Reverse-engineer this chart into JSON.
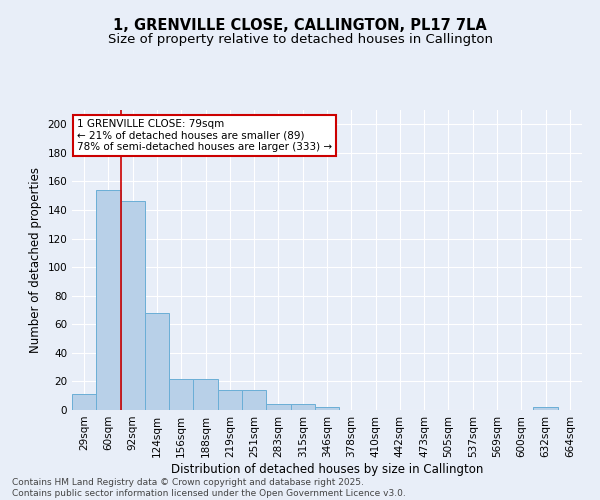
{
  "title": "1, GRENVILLE CLOSE, CALLINGTON, PL17 7LA",
  "subtitle": "Size of property relative to detached houses in Callington",
  "xlabel": "Distribution of detached houses by size in Callington",
  "ylabel": "Number of detached properties",
  "categories": [
    "29sqm",
    "60sqm",
    "92sqm",
    "124sqm",
    "156sqm",
    "188sqm",
    "219sqm",
    "251sqm",
    "283sqm",
    "315sqm",
    "346sqm",
    "378sqm",
    "410sqm",
    "442sqm",
    "473sqm",
    "505sqm",
    "537sqm",
    "569sqm",
    "600sqm",
    "632sqm",
    "664sqm"
  ],
  "values": [
    11,
    154,
    146,
    68,
    22,
    22,
    14,
    14,
    4,
    4,
    2,
    0,
    0,
    0,
    0,
    0,
    0,
    0,
    0,
    2,
    0
  ],
  "bar_color": "#b8d0e8",
  "bar_edge_color": "#6aaed6",
  "vline_x": 1.5,
  "vline_color": "#cc0000",
  "annotation_text": "1 GRENVILLE CLOSE: 79sqm\n← 21% of detached houses are smaller (89)\n78% of semi-detached houses are larger (333) →",
  "annotation_box_color": "#ffffff",
  "annotation_box_edge": "#cc0000",
  "background_color": "#e8eef8",
  "plot_bg_color": "#e8eef8",
  "grid_color": "#ffffff",
  "footer": "Contains HM Land Registry data © Crown copyright and database right 2025.\nContains public sector information licensed under the Open Government Licence v3.0.",
  "ylim": [
    0,
    210
  ],
  "yticks": [
    0,
    20,
    40,
    60,
    80,
    100,
    120,
    140,
    160,
    180,
    200
  ],
  "title_fontsize": 10.5,
  "subtitle_fontsize": 9.5,
  "xlabel_fontsize": 8.5,
  "ylabel_fontsize": 8.5,
  "tick_fontsize": 7.5,
  "footer_fontsize": 6.5,
  "annot_fontsize": 7.5
}
